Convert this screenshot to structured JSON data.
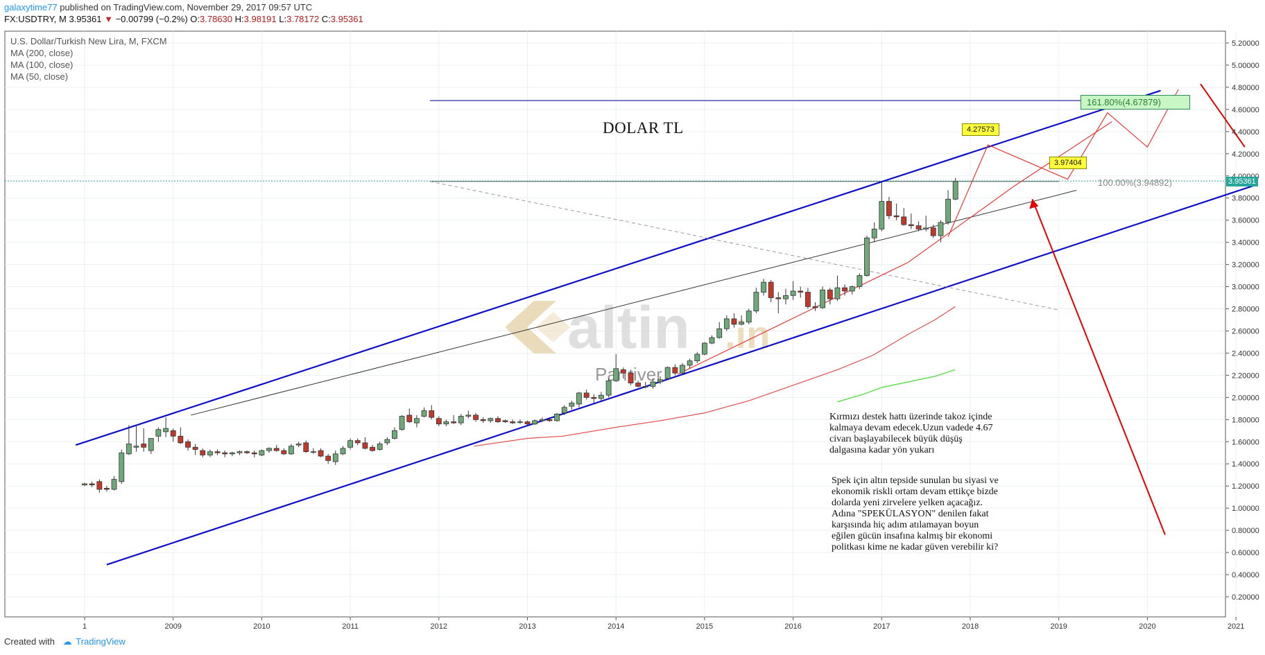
{
  "header": {
    "author": "galaxytime77",
    "published_text": " published on TradingView.com, November 29, 2017 09:57 UTC",
    "symbol": "FX:USDTRY, M",
    "last": "3.95361",
    "change": "−0.00799 (−0.2%)",
    "open_label": "O:",
    "open": "3.78630",
    "high_label": "H:",
    "high": "3.98191",
    "low_label": "L:",
    "low": "3.78172",
    "close_label": "C:",
    "close": "3.95361"
  },
  "legend": {
    "series": "U.S. Dollar/Turkish New Lira, M, FXCM",
    "ma200": "MA (200, close)",
    "ma100": "MA (100, close)",
    "ma50": "MA (50, close)"
  },
  "annotations": {
    "title": "DOLAR TL",
    "text1": [
      "Kırmızı destek hattı üzerinde takoz içinde",
      "kalmaya devam edecek.Uzun vadede 4.67",
      "civarı başlayabilecek büyük düşüş",
      "dalgasına kadar yön yukarı"
    ],
    "text2": [
      "Spek için altın tepside sunulan bu siyasi ve",
      "ekonomik riskli ortam devam ettikçe bizde",
      "dolarda yeni zirvelere yelken açacağız.",
      "Adına \"SPEKÜLASYON\" denilen fakat",
      "karşısında hiç adım atılamayan boyun",
      "eğilen gücün insafına kalmış bir ekonomi",
      "politkası kime ne kadar güven verebilir ki?"
    ],
    "tag_high": "4.27573",
    "tag_low": "3.97404",
    "fib_161": "161.80%(4.67879)",
    "fib_100": "100.00%(3.94892)",
    "current_price": "3.95361"
  },
  "watermark": {
    "brand": "altin",
    "suffix": ".in",
    "sub": "Panriver"
  },
  "footer": {
    "created": "Created with",
    "brand": "TradingView"
  },
  "colors": {
    "up": "#6fa97a",
    "down": "#c0392b",
    "channel": "#0d0dc9",
    "fib": "#2a2aa6",
    "projection": "#e53935",
    "arrow": "#e60000",
    "ma200": "#e04d4d",
    "ma50": "#66dd55",
    "trend": "#333333"
  },
  "chart_data": {
    "type": "candlestick",
    "title": "U.S. Dollar/Turkish New Lira, M, FXCM",
    "x_ticks": [
      "1",
      "2009",
      "2010",
      "2011",
      "2012",
      "2013",
      "2014",
      "2015",
      "2016",
      "2017",
      "2018",
      "2019",
      "2020",
      "2021"
    ],
    "y_ticks": [
      "0.20000",
      "0.40000",
      "0.60000",
      "0.80000",
      "1.00000",
      "1.20000",
      "1.40000",
      "1.60000",
      "1.80000",
      "2.00000",
      "2.20000",
      "2.40000",
      "2.60000",
      "2.80000",
      "3.00000",
      "3.20000",
      "3.40000",
      "3.60000",
      "3.80000",
      "4.00000",
      "4.20000",
      "4.40000",
      "4.60000",
      "4.80000",
      "5.00000",
      "5.20000"
    ],
    "ylim": [
      0.1,
      5.3
    ],
    "grid": true,
    "candles": [
      {
        "t": 2008.0,
        "o": 1.21,
        "h": 1.23,
        "l": 1.2,
        "c": 1.22
      },
      {
        "t": 2008.083,
        "o": 1.22,
        "h": 1.24,
        "l": 1.19,
        "c": 1.21
      },
      {
        "t": 2008.167,
        "o": 1.24,
        "h": 1.26,
        "l": 1.14,
        "c": 1.17
      },
      {
        "t": 2008.25,
        "o": 1.18,
        "h": 1.2,
        "l": 1.15,
        "c": 1.17
      },
      {
        "t": 2008.333,
        "o": 1.17,
        "h": 1.29,
        "l": 1.16,
        "c": 1.26
      },
      {
        "t": 2008.417,
        "o": 1.24,
        "h": 1.53,
        "l": 1.22,
        "c": 1.5
      },
      {
        "t": 2008.5,
        "o": 1.49,
        "h": 1.75,
        "l": 1.48,
        "c": 1.58
      },
      {
        "t": 2008.583,
        "o": 1.55,
        "h": 1.75,
        "l": 1.51,
        "c": 1.56
      },
      {
        "t": 2008.667,
        "o": 1.58,
        "h": 1.72,
        "l": 1.51,
        "c": 1.55
      },
      {
        "t": 2008.75,
        "o": 1.52,
        "h": 1.63,
        "l": 1.49,
        "c": 1.63
      },
      {
        "t": 2008.833,
        "o": 1.65,
        "h": 1.73,
        "l": 1.6,
        "c": 1.71
      },
      {
        "t": 2008.917,
        "o": 1.69,
        "h": 1.82,
        "l": 1.64,
        "c": 1.72
      },
      {
        "t": 2009.0,
        "o": 1.7,
        "h": 1.72,
        "l": 1.6,
        "c": 1.65
      },
      {
        "t": 2009.083,
        "o": 1.65,
        "h": 1.73,
        "l": 1.58,
        "c": 1.59
      },
      {
        "t": 2009.167,
        "o": 1.6,
        "h": 1.62,
        "l": 1.52,
        "c": 1.55
      },
      {
        "t": 2009.25,
        "o": 1.55,
        "h": 1.58,
        "l": 1.48,
        "c": 1.53
      },
      {
        "t": 2009.333,
        "o": 1.52,
        "h": 1.54,
        "l": 1.46,
        "c": 1.48
      },
      {
        "t": 2009.417,
        "o": 1.48,
        "h": 1.53,
        "l": 1.46,
        "c": 1.51
      },
      {
        "t": 2009.5,
        "o": 1.51,
        "h": 1.53,
        "l": 1.48,
        "c": 1.5
      },
      {
        "t": 2009.583,
        "o": 1.5,
        "h": 1.52,
        "l": 1.46,
        "c": 1.49
      },
      {
        "t": 2009.667,
        "o": 1.49,
        "h": 1.51,
        "l": 1.47,
        "c": 1.5
      },
      {
        "t": 2009.75,
        "o": 1.5,
        "h": 1.52,
        "l": 1.48,
        "c": 1.51
      },
      {
        "t": 2009.833,
        "o": 1.51,
        "h": 1.52,
        "l": 1.49,
        "c": 1.5
      },
      {
        "t": 2009.917,
        "o": 1.5,
        "h": 1.52,
        "l": 1.46,
        "c": 1.49
      },
      {
        "t": 2010.0,
        "o": 1.48,
        "h": 1.53,
        "l": 1.47,
        "c": 1.52
      },
      {
        "t": 2010.083,
        "o": 1.52,
        "h": 1.55,
        "l": 1.5,
        "c": 1.54
      },
      {
        "t": 2010.167,
        "o": 1.54,
        "h": 1.57,
        "l": 1.51,
        "c": 1.52
      },
      {
        "t": 2010.25,
        "o": 1.52,
        "h": 1.54,
        "l": 1.48,
        "c": 1.49
      },
      {
        "t": 2010.333,
        "o": 1.49,
        "h": 1.58,
        "l": 1.48,
        "c": 1.56
      },
      {
        "t": 2010.417,
        "o": 1.57,
        "h": 1.6,
        "l": 1.55,
        "c": 1.58
      },
      {
        "t": 2010.5,
        "o": 1.59,
        "h": 1.61,
        "l": 1.5,
        "c": 1.51
      },
      {
        "t": 2010.583,
        "o": 1.51,
        "h": 1.54,
        "l": 1.49,
        "c": 1.51
      },
      {
        "t": 2010.667,
        "o": 1.52,
        "h": 1.54,
        "l": 1.46,
        "c": 1.47
      },
      {
        "t": 2010.75,
        "o": 1.47,
        "h": 1.49,
        "l": 1.4,
        "c": 1.43
      },
      {
        "t": 2010.833,
        "o": 1.42,
        "h": 1.52,
        "l": 1.39,
        "c": 1.49
      },
      {
        "t": 2010.917,
        "o": 1.49,
        "h": 1.56,
        "l": 1.48,
        "c": 1.54
      },
      {
        "t": 2011.0,
        "o": 1.55,
        "h": 1.63,
        "l": 1.53,
        "c": 1.61
      },
      {
        "t": 2011.083,
        "o": 1.61,
        "h": 1.63,
        "l": 1.57,
        "c": 1.59
      },
      {
        "t": 2011.167,
        "o": 1.59,
        "h": 1.64,
        "l": 1.53,
        "c": 1.54
      },
      {
        "t": 2011.25,
        "o": 1.55,
        "h": 1.57,
        "l": 1.51,
        "c": 1.52
      },
      {
        "t": 2011.333,
        "o": 1.53,
        "h": 1.6,
        "l": 1.52,
        "c": 1.58
      },
      {
        "t": 2011.417,
        "o": 1.59,
        "h": 1.64,
        "l": 1.57,
        "c": 1.62
      },
      {
        "t": 2011.5,
        "o": 1.63,
        "h": 1.73,
        "l": 1.62,
        "c": 1.7
      },
      {
        "t": 2011.583,
        "o": 1.71,
        "h": 1.84,
        "l": 1.7,
        "c": 1.83
      },
      {
        "t": 2011.667,
        "o": 1.84,
        "h": 1.9,
        "l": 1.77,
        "c": 1.78
      },
      {
        "t": 2011.75,
        "o": 1.77,
        "h": 1.84,
        "l": 1.73,
        "c": 1.81
      },
      {
        "t": 2011.833,
        "o": 1.83,
        "h": 1.91,
        "l": 1.82,
        "c": 1.88
      },
      {
        "t": 2011.917,
        "o": 1.88,
        "h": 1.93,
        "l": 1.8,
        "c": 1.82
      },
      {
        "t": 2012.0,
        "o": 1.81,
        "h": 1.83,
        "l": 1.74,
        "c": 1.76
      },
      {
        "t": 2012.083,
        "o": 1.76,
        "h": 1.8,
        "l": 1.74,
        "c": 1.78
      },
      {
        "t": 2012.167,
        "o": 1.78,
        "h": 1.84,
        "l": 1.76,
        "c": 1.77
      },
      {
        "t": 2012.25,
        "o": 1.77,
        "h": 1.85,
        "l": 1.75,
        "c": 1.83
      },
      {
        "t": 2012.333,
        "o": 1.83,
        "h": 1.88,
        "l": 1.81,
        "c": 1.84
      },
      {
        "t": 2012.417,
        "o": 1.84,
        "h": 1.86,
        "l": 1.78,
        "c": 1.8
      },
      {
        "t": 2012.5,
        "o": 1.8,
        "h": 1.82,
        "l": 1.77,
        "c": 1.79
      },
      {
        "t": 2012.583,
        "o": 1.79,
        "h": 1.82,
        "l": 1.77,
        "c": 1.81
      },
      {
        "t": 2012.667,
        "o": 1.81,
        "h": 1.83,
        "l": 1.77,
        "c": 1.78
      },
      {
        "t": 2012.75,
        "o": 1.79,
        "h": 1.8,
        "l": 1.77,
        "c": 1.78
      },
      {
        "t": 2012.833,
        "o": 1.78,
        "h": 1.8,
        "l": 1.76,
        "c": 1.77
      },
      {
        "t": 2012.917,
        "o": 1.78,
        "h": 1.8,
        "l": 1.76,
        "c": 1.78
      },
      {
        "t": 2013.0,
        "o": 1.78,
        "h": 1.79,
        "l": 1.75,
        "c": 1.76
      },
      {
        "t": 2013.083,
        "o": 1.76,
        "h": 1.8,
        "l": 1.75,
        "c": 1.79
      },
      {
        "t": 2013.167,
        "o": 1.79,
        "h": 1.82,
        "l": 1.78,
        "c": 1.8
      },
      {
        "t": 2013.25,
        "o": 1.8,
        "h": 1.82,
        "l": 1.78,
        "c": 1.79
      },
      {
        "t": 2013.333,
        "o": 1.79,
        "h": 1.86,
        "l": 1.78,
        "c": 1.85
      },
      {
        "t": 2013.417,
        "o": 1.86,
        "h": 1.93,
        "l": 1.84,
        "c": 1.91
      },
      {
        "t": 2013.5,
        "o": 1.92,
        "h": 1.97,
        "l": 1.89,
        "c": 1.95
      },
      {
        "t": 2013.583,
        "o": 1.94,
        "h": 2.05,
        "l": 1.91,
        "c": 2.04
      },
      {
        "t": 2013.667,
        "o": 2.04,
        "h": 2.07,
        "l": 1.98,
        "c": 2.0
      },
      {
        "t": 2013.75,
        "o": 2.0,
        "h": 2.03,
        "l": 1.95,
        "c": 1.99
      },
      {
        "t": 2013.833,
        "o": 1.99,
        "h": 2.05,
        "l": 1.97,
        "c": 2.02
      },
      {
        "t": 2013.917,
        "o": 2.02,
        "h": 2.17,
        "l": 2.0,
        "c": 2.15
      },
      {
        "t": 2014.0,
        "o": 2.15,
        "h": 2.39,
        "l": 2.14,
        "c": 2.26
      },
      {
        "t": 2014.083,
        "o": 2.25,
        "h": 2.27,
        "l": 2.17,
        "c": 2.22
      },
      {
        "t": 2014.167,
        "o": 2.22,
        "h": 2.25,
        "l": 2.11,
        "c": 2.13
      },
      {
        "t": 2014.25,
        "o": 2.13,
        "h": 2.15,
        "l": 2.09,
        "c": 2.1
      },
      {
        "t": 2014.333,
        "o": 2.1,
        "h": 2.14,
        "l": 2.08,
        "c": 2.1
      },
      {
        "t": 2014.417,
        "o": 2.1,
        "h": 2.17,
        "l": 2.08,
        "c": 2.14
      },
      {
        "t": 2014.5,
        "o": 2.14,
        "h": 2.19,
        "l": 2.12,
        "c": 2.16
      },
      {
        "t": 2014.583,
        "o": 2.17,
        "h": 2.28,
        "l": 2.16,
        "c": 2.27
      },
      {
        "t": 2014.667,
        "o": 2.27,
        "h": 2.3,
        "l": 2.2,
        "c": 2.22
      },
      {
        "t": 2014.75,
        "o": 2.22,
        "h": 2.31,
        "l": 2.21,
        "c": 2.29
      },
      {
        "t": 2014.833,
        "o": 2.29,
        "h": 2.35,
        "l": 2.26,
        "c": 2.33
      },
      {
        "t": 2014.917,
        "o": 2.33,
        "h": 2.41,
        "l": 2.31,
        "c": 2.39
      },
      {
        "t": 2015.0,
        "o": 2.39,
        "h": 2.5,
        "l": 2.38,
        "c": 2.49
      },
      {
        "t": 2015.083,
        "o": 2.49,
        "h": 2.56,
        "l": 2.48,
        "c": 2.54
      },
      {
        "t": 2015.167,
        "o": 2.54,
        "h": 2.68,
        "l": 2.53,
        "c": 2.62
      },
      {
        "t": 2015.25,
        "o": 2.62,
        "h": 2.74,
        "l": 2.6,
        "c": 2.71
      },
      {
        "t": 2015.333,
        "o": 2.71,
        "h": 2.76,
        "l": 2.63,
        "c": 2.66
      },
      {
        "t": 2015.417,
        "o": 2.66,
        "h": 2.74,
        "l": 2.65,
        "c": 2.68
      },
      {
        "t": 2015.5,
        "o": 2.68,
        "h": 2.8,
        "l": 2.66,
        "c": 2.78
      },
      {
        "t": 2015.583,
        "o": 2.78,
        "h": 2.99,
        "l": 2.76,
        "c": 2.95
      },
      {
        "t": 2015.667,
        "o": 2.95,
        "h": 3.07,
        "l": 2.92,
        "c": 3.04
      },
      {
        "t": 2015.75,
        "o": 3.04,
        "h": 3.06,
        "l": 2.86,
        "c": 2.9
      },
      {
        "t": 2015.833,
        "o": 2.9,
        "h": 2.95,
        "l": 2.76,
        "c": 2.89
      },
      {
        "t": 2015.917,
        "o": 2.89,
        "h": 2.98,
        "l": 2.84,
        "c": 2.92
      },
      {
        "t": 2016.0,
        "o": 2.92,
        "h": 3.05,
        "l": 2.88,
        "c": 2.96
      },
      {
        "t": 2016.083,
        "o": 2.96,
        "h": 3.0,
        "l": 2.9,
        "c": 2.95
      },
      {
        "t": 2016.167,
        "o": 2.95,
        "h": 2.99,
        "l": 2.8,
        "c": 2.82
      },
      {
        "t": 2016.25,
        "o": 2.82,
        "h": 2.86,
        "l": 2.78,
        "c": 2.81
      },
      {
        "t": 2016.333,
        "o": 2.81,
        "h": 3.0,
        "l": 2.8,
        "c": 2.97
      },
      {
        "t": 2016.417,
        "o": 2.97,
        "h": 2.99,
        "l": 2.84,
        "c": 2.89
      },
      {
        "t": 2016.5,
        "o": 2.89,
        "h": 3.1,
        "l": 2.87,
        "c": 2.99
      },
      {
        "t": 2016.583,
        "o": 2.99,
        "h": 3.02,
        "l": 2.92,
        "c": 2.96
      },
      {
        "t": 2016.667,
        "o": 2.96,
        "h": 3.01,
        "l": 2.93,
        "c": 3.0
      },
      {
        "t": 2016.75,
        "o": 3.0,
        "h": 3.12,
        "l": 2.98,
        "c": 3.1
      },
      {
        "t": 2016.833,
        "o": 3.1,
        "h": 3.46,
        "l": 3.09,
        "c": 3.44
      },
      {
        "t": 2016.917,
        "o": 3.44,
        "h": 3.58,
        "l": 3.4,
        "c": 3.52
      },
      {
        "t": 2017.0,
        "o": 3.52,
        "h": 3.94,
        "l": 3.5,
        "c": 3.77
      },
      {
        "t": 2017.083,
        "o": 3.77,
        "h": 3.81,
        "l": 3.61,
        "c": 3.64
      },
      {
        "t": 2017.167,
        "o": 3.64,
        "h": 3.75,
        "l": 3.6,
        "c": 3.63
      },
      {
        "t": 2017.25,
        "o": 3.63,
        "h": 3.71,
        "l": 3.55,
        "c": 3.56
      },
      {
        "t": 2017.333,
        "o": 3.56,
        "h": 3.66,
        "l": 3.52,
        "c": 3.55
      },
      {
        "t": 2017.417,
        "o": 3.55,
        "h": 3.59,
        "l": 3.5,
        "c": 3.52
      },
      {
        "t": 2017.5,
        "o": 3.52,
        "h": 3.64,
        "l": 3.5,
        "c": 3.53
      },
      {
        "t": 2017.583,
        "o": 3.53,
        "h": 3.56,
        "l": 3.44,
        "c": 3.46
      },
      {
        "t": 2017.667,
        "o": 3.46,
        "h": 3.6,
        "l": 3.4,
        "c": 3.58
      },
      {
        "t": 2017.75,
        "o": 3.58,
        "h": 3.87,
        "l": 3.56,
        "c": 3.79
      },
      {
        "t": 2017.833,
        "o": 3.79,
        "h": 3.98,
        "l": 3.78,
        "c": 3.95
      }
    ],
    "ma200": [
      [
        2012.4,
        1.56
      ],
      [
        2013.0,
        1.63
      ],
      [
        2013.4,
        1.65
      ],
      [
        2014.0,
        1.73
      ],
      [
        2014.5,
        1.79
      ],
      [
        2015.0,
        1.86
      ],
      [
        2015.5,
        1.97
      ],
      [
        2016.0,
        2.11
      ],
      [
        2016.5,
        2.25
      ],
      [
        2016.9,
        2.38
      ],
      [
        2017.3,
        2.57
      ],
      [
        2017.6,
        2.7
      ],
      [
        2017.83,
        2.82
      ]
    ],
    "ma50": [
      [
        2016.5,
        1.96
      ],
      [
        2016.8,
        2.03
      ],
      [
        2017.0,
        2.09
      ],
      [
        2017.3,
        2.14
      ],
      [
        2017.6,
        2.19
      ],
      [
        2017.83,
        2.25
      ]
    ],
    "channel_upper": [
      [
        2007.9,
        1.57
      ],
      [
        2020.15,
        4.77
      ]
    ],
    "channel_lower": [
      [
        2008.25,
        0.49
      ],
      [
        2021.23,
        3.92
      ]
    ],
    "trend_black": [
      [
        2009.2,
        1.84
      ],
      [
        2019.2,
        3.87
      ]
    ],
    "trend_gray_dashed": [
      [
        2011.9,
        3.95
      ],
      [
        2019.0,
        2.79
      ]
    ],
    "support_red": [
      [
        2014.7,
        2.21
      ],
      [
        2017.3,
        3.22
      ],
      [
        2018.5,
        3.91
      ],
      [
        2019.6,
        4.49
      ]
    ],
    "fib_161_line": [
      [
        2011.9,
        4.68
      ],
      [
        2020.05,
        4.68
      ]
    ],
    "fib_100_line": [
      [
        2011.9,
        3.95
      ],
      [
        2019.0,
        3.95
      ]
    ],
    "projection": [
      [
        2017.75,
        3.45
      ],
      [
        2018.2,
        4.28
      ],
      [
        2019.1,
        3.97
      ],
      [
        2019.55,
        4.57
      ],
      [
        2020.0,
        4.26
      ],
      [
        2020.35,
        4.78
      ]
    ],
    "arrow_red_up": [
      [
        2020.2,
        0.76
      ],
      [
        2018.7,
        3.79
      ]
    ],
    "arrow_red_down": [
      [
        2020.6,
        4.83
      ],
      [
        2021.1,
        4.26
      ]
    ]
  }
}
